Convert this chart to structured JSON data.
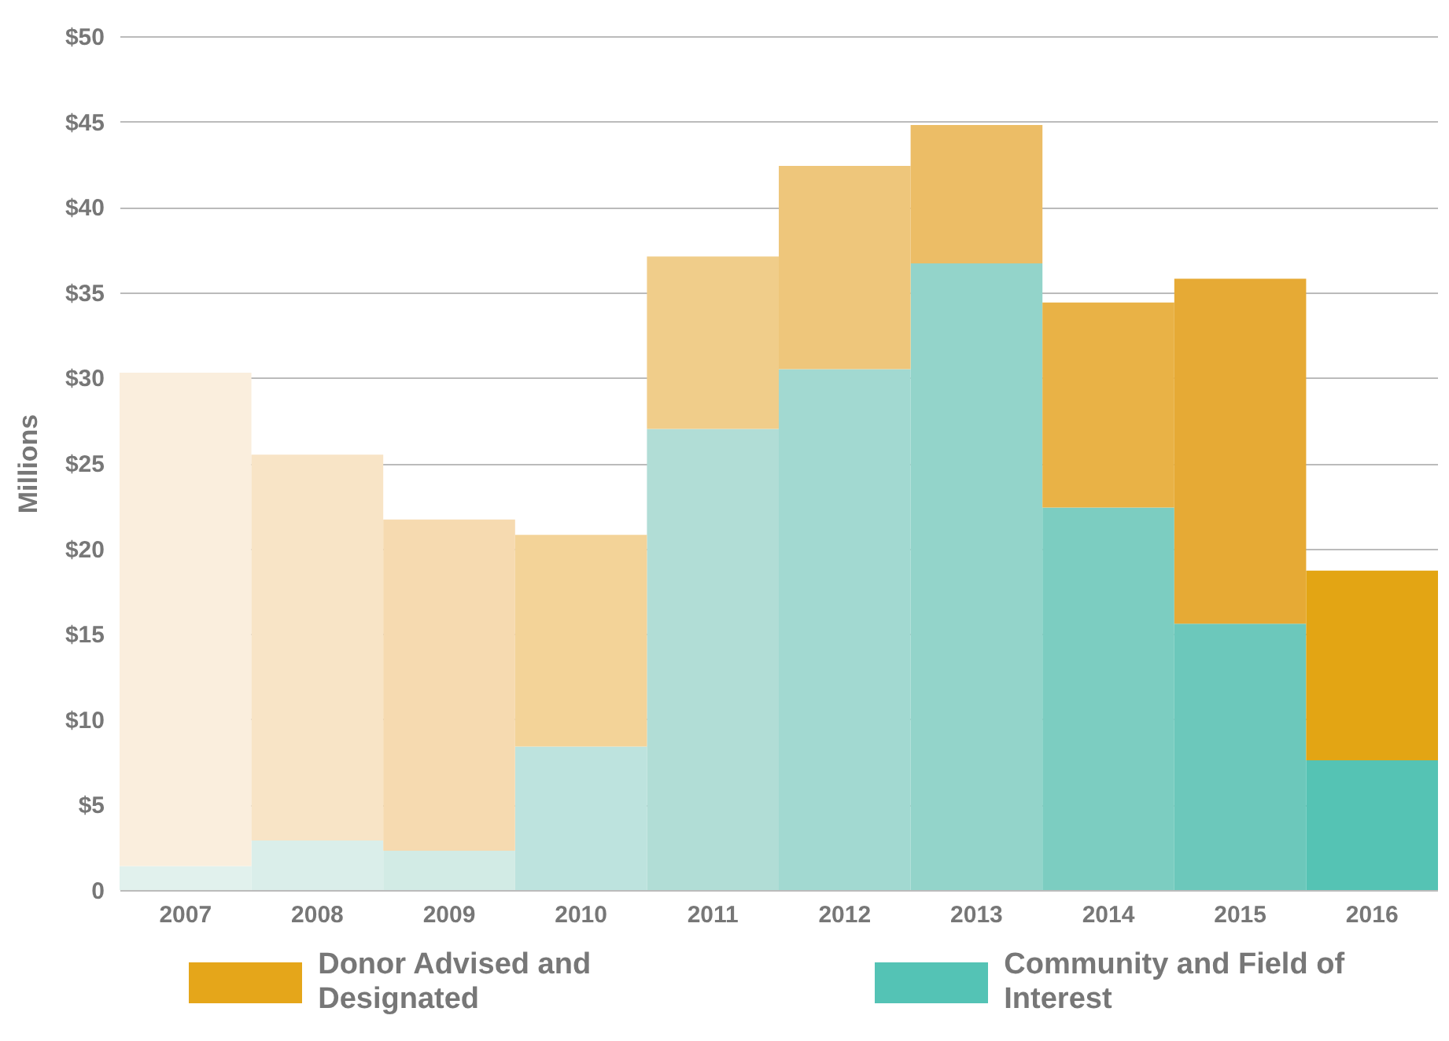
{
  "chart_data": {
    "type": "bar",
    "stacked": true,
    "ylabel": "Millions",
    "categories": [
      "2007",
      "2008",
      "2009",
      "2010",
      "2011",
      "2012",
      "2013",
      "2014",
      "2015",
      "2016"
    ],
    "series": [
      {
        "name": "Community and Field of Interest",
        "color": "#54c3b5",
        "colors": [
          "#e1f1ed",
          "#daeeea",
          "#d2ebe5",
          "#bde3de",
          "#b1ddd6",
          "#a2d9d1",
          "#93d4ca",
          "#7ccdc1",
          "#6cc8bb",
          "#55c3b4"
        ],
        "values": [
          1.4,
          2.9,
          2.3,
          8.4,
          27.0,
          30.5,
          36.7,
          22.4,
          15.6,
          7.6
        ]
      },
      {
        "name": "Donor Advised and Designated",
        "color": "#e5a61a",
        "colors": [
          "#faeedd",
          "#f8e4c6",
          "#f6dab0",
          "#f3d398",
          "#f0cd8a",
          "#eec67b",
          "#ecbd66",
          "#e9b246",
          "#e6aa35",
          "#e3a514"
        ],
        "values": [
          28.9,
          22.6,
          19.4,
          12.4,
          10.1,
          11.9,
          8.1,
          12.0,
          20.2,
          11.1
        ]
      }
    ],
    "ylim": [
      0,
      50
    ],
    "yticks": [
      {
        "value": 0,
        "label": "0"
      },
      {
        "value": 5,
        "label": "$5"
      },
      {
        "value": 10,
        "label": "$10"
      },
      {
        "value": 15,
        "label": "$15"
      },
      {
        "value": 20,
        "label": "$20"
      },
      {
        "value": 25,
        "label": "$25"
      },
      {
        "value": 30,
        "label": "$30"
      },
      {
        "value": 35,
        "label": "$35"
      },
      {
        "value": 40,
        "label": "$40"
      },
      {
        "value": 45,
        "label": "$45"
      },
      {
        "value": 50,
        "label": "$50"
      }
    ],
    "grid": "y",
    "legend": "bottom"
  }
}
